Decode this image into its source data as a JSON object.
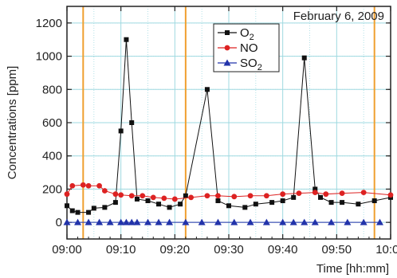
{
  "chart_data": {
    "type": "line",
    "annotation": "February 6, 2009",
    "xlabel": "Time [hh:mm]",
    "ylabel": "Concentrations [ppm]",
    "xlim": [
      "09:00",
      "10:00"
    ],
    "ylim": [
      -100,
      1300
    ],
    "xticks": [
      "09:00",
      "09:10",
      "09:20",
      "09:30",
      "09:40",
      "09:50",
      "10:00"
    ],
    "yticks": [
      0,
      200,
      400,
      600,
      800,
      1000,
      1200
    ],
    "grid": true,
    "legend_position": "top-center",
    "event_lines_x": [
      "09:03",
      "09:22",
      "09:57"
    ],
    "event_line_color": "#f0a030",
    "grid_color": "#9fd9e0",
    "series": [
      {
        "name": "O2",
        "color": "#111111",
        "marker": "square",
        "points": [
          [
            "09:00",
            100
          ],
          [
            "09:01",
            70
          ],
          [
            "09:02",
            60
          ],
          [
            "09:04",
            60
          ],
          [
            "09:05",
            85
          ],
          [
            "09:07",
            90
          ],
          [
            "09:09",
            120
          ],
          [
            "09:10",
            550
          ],
          [
            "09:11",
            1100
          ],
          [
            "09:12",
            600
          ],
          [
            "09:13",
            140
          ],
          [
            "09:15",
            130
          ],
          [
            "09:17",
            110
          ],
          [
            "09:19",
            90
          ],
          [
            "09:21",
            110
          ],
          [
            "09:22",
            160
          ],
          [
            "09:26",
            800
          ],
          [
            "09:28",
            130
          ],
          [
            "09:30",
            100
          ],
          [
            "09:33",
            90
          ],
          [
            "09:35",
            110
          ],
          [
            "09:38",
            120
          ],
          [
            "09:40",
            130
          ],
          [
            "09:42",
            150
          ],
          [
            "09:44",
            990
          ],
          [
            "09:46",
            200
          ],
          [
            "09:47",
            150
          ],
          [
            "09:49",
            120
          ],
          [
            "09:51",
            120
          ],
          [
            "09:54",
            110
          ],
          [
            "09:57",
            130
          ],
          [
            "10:00",
            150
          ]
        ]
      },
      {
        "name": "NO",
        "color": "#dd2222",
        "marker": "circle",
        "points": [
          [
            "09:00",
            170
          ],
          [
            "09:01",
            220
          ],
          [
            "09:03",
            225
          ],
          [
            "09:04",
            220
          ],
          [
            "09:06",
            220
          ],
          [
            "09:07",
            190
          ],
          [
            "09:09",
            170
          ],
          [
            "09:10",
            165
          ],
          [
            "09:12",
            160
          ],
          [
            "09:14",
            160
          ],
          [
            "09:16",
            150
          ],
          [
            "09:18",
            145
          ],
          [
            "09:20",
            140
          ],
          [
            "09:23",
            150
          ],
          [
            "09:26",
            160
          ],
          [
            "09:28",
            160
          ],
          [
            "09:31",
            155
          ],
          [
            "09:34",
            160
          ],
          [
            "09:37",
            160
          ],
          [
            "09:40",
            170
          ],
          [
            "09:43",
            175
          ],
          [
            "09:46",
            180
          ],
          [
            "09:48",
            170
          ],
          [
            "09:51",
            175
          ],
          [
            "09:55",
            180
          ],
          [
            "10:00",
            165
          ]
        ]
      },
      {
        "name": "SO2",
        "color": "#2233aa",
        "marker": "triangle",
        "points": [
          [
            "09:00",
            0
          ],
          [
            "09:02",
            0
          ],
          [
            "09:04",
            0
          ],
          [
            "09:06",
            0
          ],
          [
            "09:08",
            0
          ],
          [
            "09:10",
            0
          ],
          [
            "09:11",
            0
          ],
          [
            "09:12",
            0
          ],
          [
            "09:13",
            0
          ],
          [
            "09:15",
            0
          ],
          [
            "09:17",
            0
          ],
          [
            "09:19",
            0
          ],
          [
            "09:22",
            0
          ],
          [
            "09:25",
            0
          ],
          [
            "09:28",
            0
          ],
          [
            "09:31",
            0
          ],
          [
            "09:34",
            0
          ],
          [
            "09:37",
            0
          ],
          [
            "09:40",
            0
          ],
          [
            "09:42",
            0
          ],
          [
            "09:44",
            0
          ],
          [
            "09:46",
            0
          ],
          [
            "09:49",
            0
          ],
          [
            "09:52",
            0
          ],
          [
            "09:55",
            0
          ],
          [
            "09:58",
            0
          ]
        ]
      }
    ]
  }
}
